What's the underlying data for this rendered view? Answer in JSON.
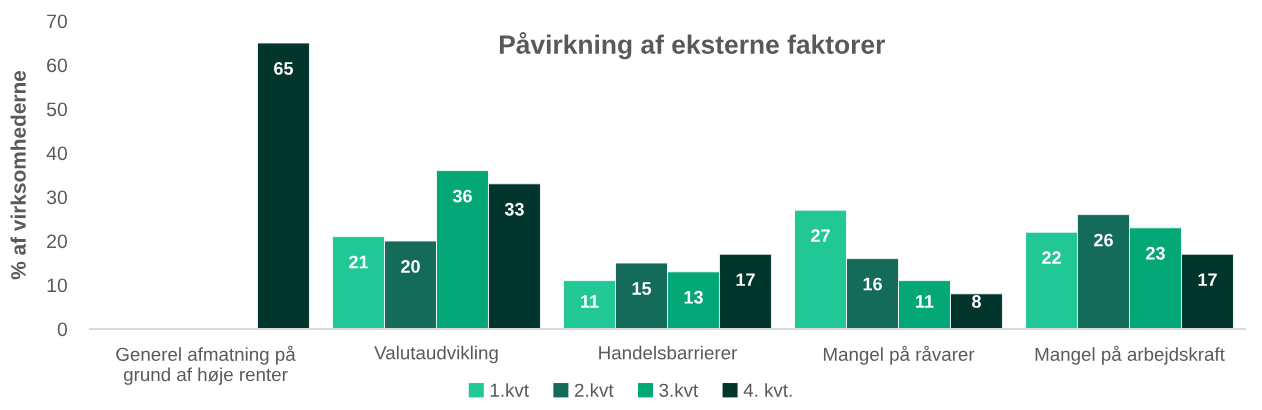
{
  "chart_data": {
    "type": "bar",
    "title": "Påvirkning af eksterne faktorer",
    "ylabel": "% af virksomhederne",
    "categories": [
      "Generel afmatning på\ngrund af høje renter",
      "Valutaudvikling",
      "Handelsbarrierer",
      "Mangel på råvarer",
      "Mangel på arbejdskraft"
    ],
    "series": [
      {
        "name": "1.kvt",
        "color": "#21c795",
        "values": [
          null,
          21,
          11,
          27,
          22
        ]
      },
      {
        "name": "2.kvt",
        "color": "#146b5a",
        "values": [
          null,
          20,
          15,
          16,
          26
        ]
      },
      {
        "name": "3.kvt",
        "color": "#03a876",
        "values": [
          null,
          36,
          13,
          11,
          23
        ]
      },
      {
        "name": "4. kvt.",
        "color": "#02352c",
        "values": [
          65,
          33,
          17,
          8,
          17
        ]
      }
    ],
    "ylim": [
      0,
      70
    ],
    "yticks": [
      0,
      10,
      20,
      30,
      40,
      50,
      60,
      70
    ],
    "grid": false,
    "legend": "bottom",
    "data_labels": true
  }
}
